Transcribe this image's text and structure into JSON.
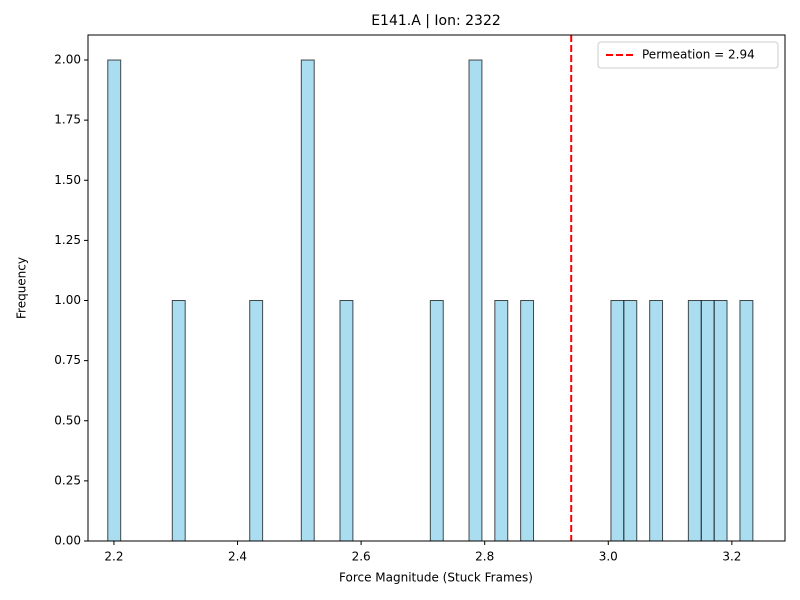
{
  "chart_data": {
    "type": "histogram",
    "title": "E141.A | Ion: 2322",
    "x_label": "Force Magnitude (Stuck Frames)",
    "y_label": "Frequency",
    "bins": [
      2.19,
      2.2109,
      2.2318,
      2.2526,
      2.2735,
      2.2944,
      2.3153,
      2.3362,
      2.357,
      2.3779,
      2.3988,
      2.4197,
      2.4406,
      2.4614,
      2.4823,
      2.5032,
      2.5241,
      2.545,
      2.5658,
      2.5867,
      2.6076,
      2.6285,
      2.6494,
      2.6702,
      2.6911,
      2.712,
      2.7329,
      2.7538,
      2.7746,
      2.7955,
      2.8164,
      2.8373,
      2.8582,
      2.879,
      2.8999,
      2.9208,
      2.9417,
      2.9626,
      2.9834,
      3.0043,
      3.0252,
      3.0461,
      3.067,
      3.0878,
      3.1087,
      3.1296,
      3.1505,
      3.1714,
      3.1922,
      3.2131,
      3.234
    ],
    "values": [
      2,
      0,
      0,
      0,
      0,
      1,
      0,
      0,
      0,
      0,
      0,
      1,
      0,
      0,
      0,
      2,
      0,
      0,
      1,
      0,
      0,
      0,
      0,
      0,
      0,
      1,
      0,
      0,
      2,
      0,
      1,
      0,
      1,
      0,
      0,
      0,
      0,
      0,
      0,
      1,
      1,
      0,
      1,
      0,
      0,
      1,
      1,
      1,
      0,
      1
    ],
    "color": "#87ceeb",
    "xlim": [
      2.158,
      3.286
    ],
    "xticks": [
      2.2,
      2.4,
      2.6,
      2.8,
      {
        "value": 3.0,
        "label": "3.0"
      },
      3.2
    ],
    "ylim": [
      0,
      2.104
    ],
    "yticks": [
      {
        "value": 0,
        "label": "0.00"
      },
      {
        "value": 0.25,
        "label": "0.25"
      },
      {
        "value": 0.5,
        "label": "0.50"
      },
      {
        "value": 0.75,
        "label": "0.75"
      },
      {
        "value": 1.0,
        "label": "1.00"
      },
      {
        "value": 1.25,
        "label": "1.25"
      },
      {
        "value": 1.5,
        "label": "1.50"
      },
      {
        "value": 1.75,
        "label": "1.75"
      },
      {
        "value": 2.0,
        "label": "2.00"
      }
    ],
    "vline": {
      "value": 2.94,
      "label": "Permeation = 2.94",
      "color": "#ff0000"
    },
    "legend": "upper right"
  }
}
